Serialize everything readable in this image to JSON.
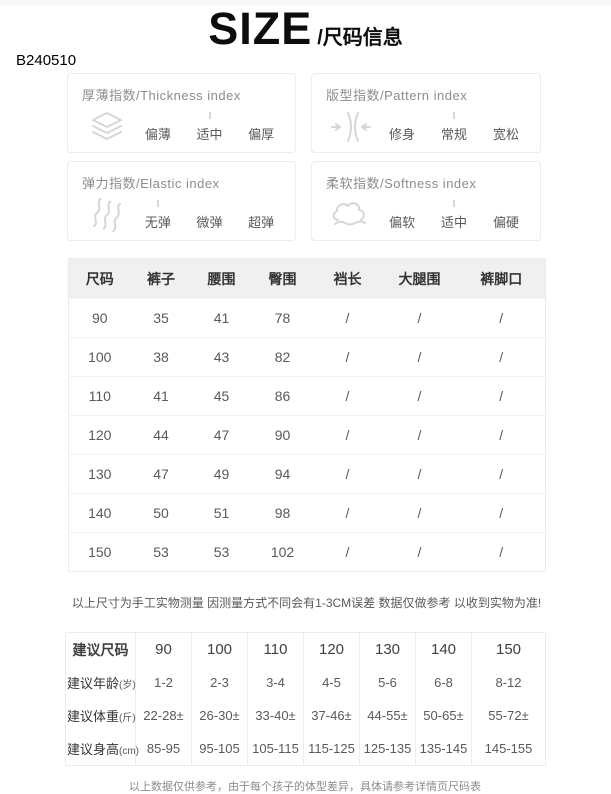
{
  "page": {
    "title_en": "SIZE",
    "title_zh": "/尺码信息",
    "product_code": "B240510"
  },
  "index_boxes": [
    {
      "title": "厚薄指数/Thickness index",
      "icon": "layers-icon",
      "options": [
        "偏薄",
        "适中",
        "偏厚"
      ],
      "selected": 1
    },
    {
      "title": "版型指数/Pattern index",
      "icon": "squeeze-icon",
      "options": [
        "修身",
        "常规",
        "宽松"
      ],
      "selected": 1
    },
    {
      "title": "弹力指数/Elastic index",
      "icon": "waves-icon",
      "options": [
        "无弹",
        "微弹",
        "超弹"
      ],
      "selected": 0
    },
    {
      "title": "柔软指数/Softness index",
      "icon": "cloud-icon",
      "options": [
        "偏软",
        "适中",
        "偏硬"
      ],
      "selected": 1
    }
  ],
  "size_table": {
    "headers": [
      "尺码",
      "裤子",
      "腰围",
      "臀围",
      "裆长",
      "大腿围",
      "裤脚口"
    ],
    "rows": [
      [
        "90",
        "35",
        "41",
        "78",
        "/",
        "/",
        "/"
      ],
      [
        "100",
        "38",
        "43",
        "82",
        "/",
        "/",
        "/"
      ],
      [
        "110",
        "41",
        "45",
        "86",
        "/",
        "/",
        "/"
      ],
      [
        "120",
        "44",
        "47",
        "90",
        "/",
        "/",
        "/"
      ],
      [
        "130",
        "47",
        "49",
        "94",
        "/",
        "/",
        "/"
      ],
      [
        "140",
        "50",
        "51",
        "98",
        "/",
        "/",
        "/"
      ],
      [
        "150",
        "53",
        "53",
        "102",
        "/",
        "/",
        "/"
      ]
    ]
  },
  "suggest_table": {
    "rows": [
      {
        "label": "建议尺码",
        "suffix": "",
        "values": [
          "90",
          "100",
          "110",
          "120",
          "130",
          "140",
          "150"
        ]
      },
      {
        "label": "建议年龄",
        "suffix": "(岁)",
        "values": [
          "1-2",
          "2-3",
          "3-4",
          "4-5",
          "5-6",
          "6-8",
          "8-12"
        ]
      },
      {
        "label": "建议体重",
        "suffix": "(斤)",
        "values": [
          "22-28±",
          "26-30±",
          "33-40±",
          "37-46±",
          "44-55±",
          "50-65±",
          "55-72±"
        ]
      },
      {
        "label": "建议身高",
        "suffix": "(cm)",
        "values": [
          "85-95",
          "95-105",
          "105-115",
          "115-125",
          "125-135",
          "135-145",
          "145-155"
        ]
      }
    ]
  },
  "notes": {
    "measure": "以上尺寸为手工实物测量 因测量方式不同会有1-3CM误差 数据仅做参考 以收到实物为准!",
    "footer": "以上数据仅供参考，由于每个孩子的体型差异，具体请参考详情页尺码表"
  },
  "colors": {
    "header_bg": "#f0f0f0",
    "border": "#ececec",
    "icon_gray": "#d6d6d6",
    "text_gray": "#595959"
  }
}
